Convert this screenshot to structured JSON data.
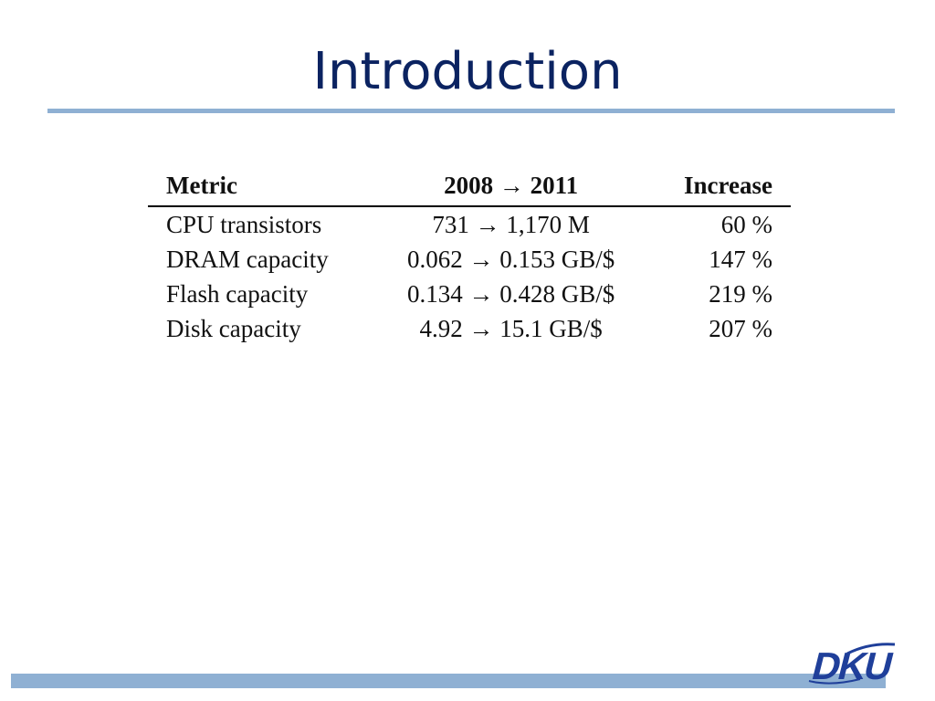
{
  "slide": {
    "title": "Introduction"
  },
  "table": {
    "headers": {
      "metric": "Metric",
      "change": "2008 → 2011",
      "increase": "Increase"
    },
    "rows": [
      {
        "metric": "CPU transistors",
        "change": "731 → 1,170 M",
        "increase": "60 %"
      },
      {
        "metric": "DRAM capacity",
        "change": "0.062 → 0.153 GB/$",
        "increase": "147 %"
      },
      {
        "metric": "Flash capacity",
        "change": "0.134 → 0.428 GB/$",
        "increase": "219 %"
      },
      {
        "metric": "Disk capacity",
        "change": "4.92 → 15.1 GB/$",
        "increase": "207 %"
      }
    ]
  },
  "logo": {
    "text": "DKU",
    "color": "#1f3f9a"
  },
  "colors": {
    "title": "#0b2361",
    "accent_bar": "#8fb0d3"
  }
}
